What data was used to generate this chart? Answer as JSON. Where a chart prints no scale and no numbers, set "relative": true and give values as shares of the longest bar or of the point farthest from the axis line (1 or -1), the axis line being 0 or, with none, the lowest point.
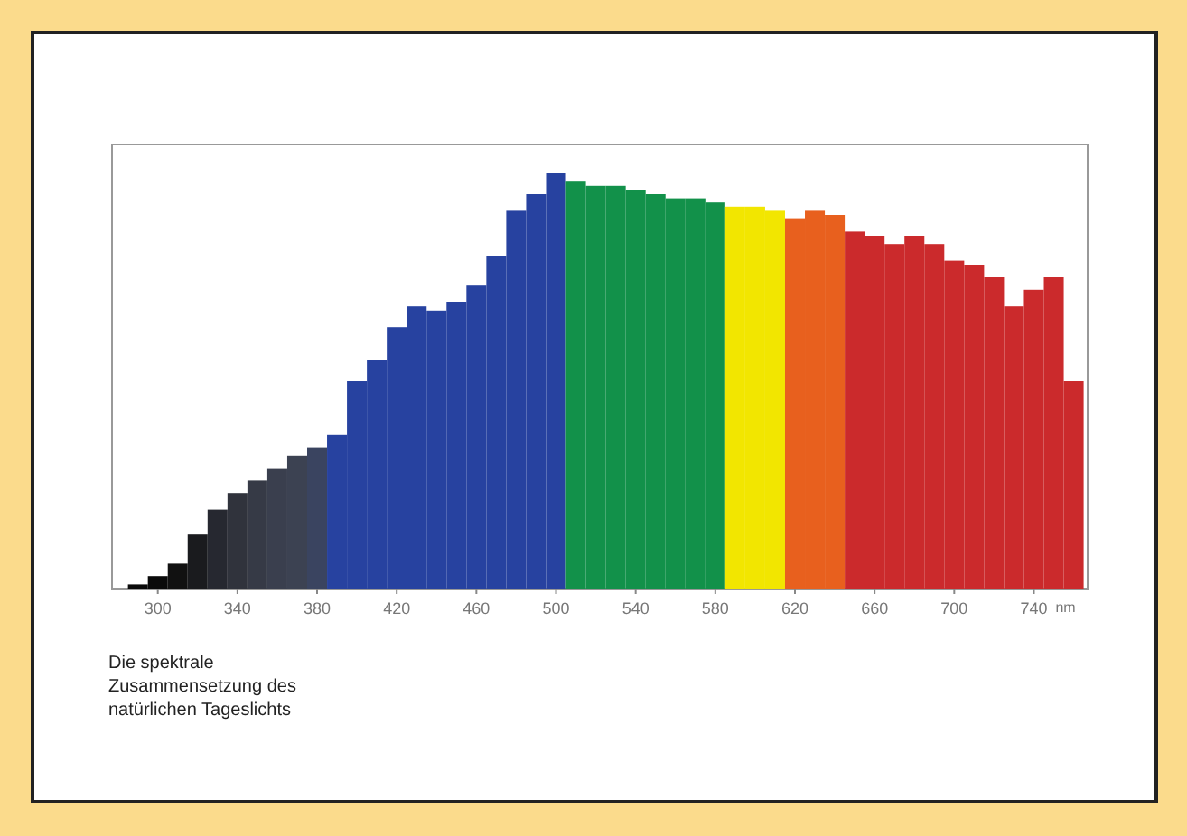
{
  "chart_data": {
    "type": "bar",
    "relative": true,
    "xlabel": "nm",
    "annotations": [
      "Die spektrale Zusammensetzung des natürlichen Tageslichts"
    ],
    "xlim": [
      277,
      767
    ],
    "xticks": [
      300,
      340,
      380,
      420,
      460,
      500,
      540,
      580,
      620,
      660,
      700,
      740
    ],
    "x": [
      290,
      300,
      310,
      320,
      330,
      340,
      350,
      360,
      370,
      380,
      390,
      400,
      410,
      420,
      430,
      440,
      450,
      460,
      470,
      480,
      490,
      500,
      510,
      520,
      530,
      540,
      550,
      560,
      570,
      580,
      590,
      600,
      610,
      620,
      630,
      640,
      650,
      660,
      670,
      680,
      690,
      700,
      710,
      720,
      730,
      740,
      750,
      760
    ],
    "values": [
      0.01,
      0.03,
      0.06,
      0.13,
      0.19,
      0.23,
      0.26,
      0.29,
      0.32,
      0.34,
      0.37,
      0.5,
      0.55,
      0.63,
      0.68,
      0.67,
      0.69,
      0.73,
      0.8,
      0.91,
      0.95,
      1,
      0.98,
      0.97,
      0.97,
      0.96,
      0.95,
      0.94,
      0.94,
      0.93,
      0.92,
      0.92,
      0.91,
      0.89,
      0.91,
      0.9,
      0.86,
      0.85,
      0.83,
      0.85,
      0.83,
      0.79,
      0.78,
      0.75,
      0.68,
      0.72,
      0.75,
      0.5
    ],
    "colors": [
      "#0a0a0a",
      "#0a0a0a",
      "#111111",
      "#1a1b1e",
      "#262830",
      "#30333c",
      "#363a46",
      "#3a3f4e",
      "#3c4252",
      "#3a4460",
      "#2742a0",
      "#2742a0",
      "#2742a0",
      "#2742a0",
      "#2742a0",
      "#2742a0",
      "#2742a0",
      "#2742a0",
      "#2742a0",
      "#2742a0",
      "#2742a0",
      "#2742a0",
      "#12914a",
      "#12914a",
      "#12914a",
      "#12914a",
      "#12914a",
      "#12914a",
      "#12914a",
      "#12914a",
      "#f2e600",
      "#f2e600",
      "#f2e600",
      "#e8601e",
      "#e8601e",
      "#e8601e",
      "#cb2a2c",
      "#cb2a2c",
      "#cb2a2c",
      "#cb2a2c",
      "#cb2a2c",
      "#cb2a2c",
      "#cb2a2c",
      "#cb2a2c",
      "#cb2a2c",
      "#cb2a2c",
      "#cb2a2c",
      "#cb2a2c"
    ]
  }
}
